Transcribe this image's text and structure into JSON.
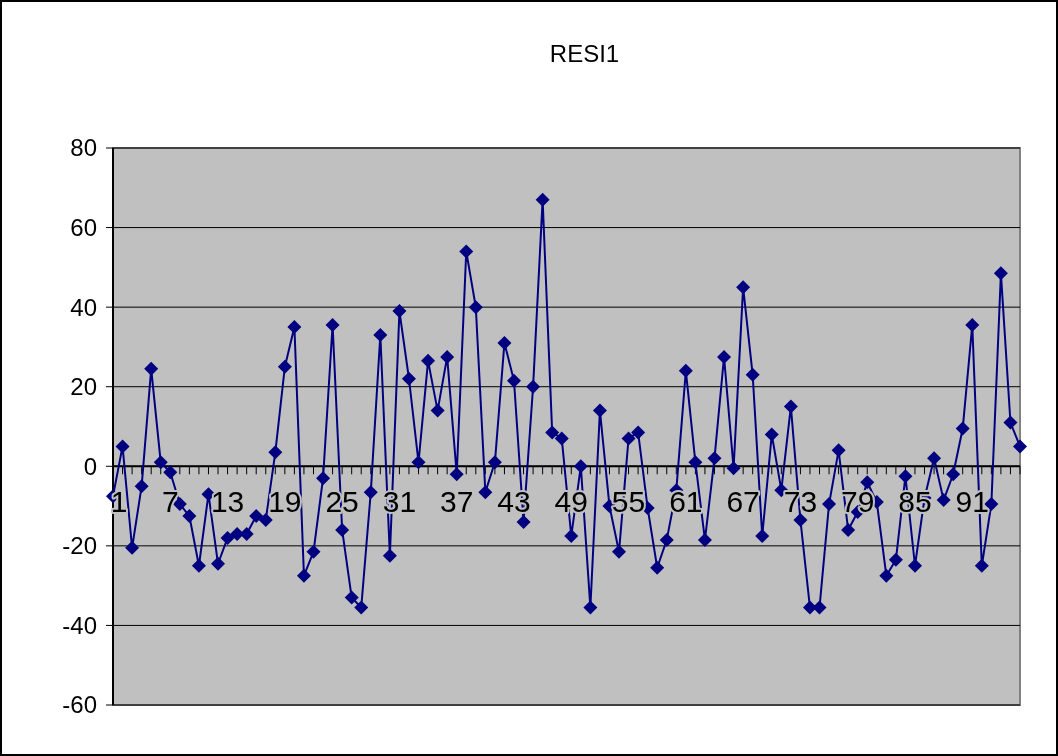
{
  "chart_data": {
    "type": "line",
    "title": "RESI1",
    "categories": [
      "1",
      null,
      null,
      null,
      null,
      null,
      "7",
      null,
      null,
      null,
      null,
      null,
      "13",
      null,
      null,
      null,
      null,
      null,
      "19",
      null,
      null,
      null,
      null,
      null,
      "25",
      null,
      null,
      null,
      null,
      null,
      "31",
      null,
      null,
      null,
      null,
      null,
      "37",
      null,
      null,
      null,
      null,
      null,
      "43",
      null,
      null,
      null,
      null,
      null,
      "49",
      null,
      null,
      null,
      null,
      null,
      "55",
      null,
      null,
      null,
      null,
      null,
      "61",
      null,
      null,
      null,
      null,
      null,
      "67",
      null,
      null,
      null,
      null,
      null,
      "73",
      null,
      null,
      null,
      null,
      null,
      "79",
      null,
      null,
      null,
      null,
      null,
      "85",
      null,
      null,
      null,
      null,
      null,
      "91",
      null,
      null,
      null,
      null,
      null
    ],
    "series": [
      {
        "color": "#000080",
        "values": [
          -7.5,
          5,
          -20.5,
          -5,
          24.5,
          1,
          -1.5,
          -9.5,
          -12.5,
          -25,
          -7,
          -24.5,
          -18,
          -17,
          -17,
          -12.5,
          -13.5,
          3.5,
          25,
          35,
          -27.5,
          -21.5,
          -3,
          35.5,
          -16,
          -33,
          -35.5,
          -6.5,
          33,
          -22.5,
          39,
          22,
          1,
          26.5,
          14,
          27.5,
          -2,
          54,
          40,
          -6.5,
          1,
          31,
          21.5,
          -14,
          20,
          67,
          8.5,
          7,
          -17.5,
          0,
          -35.5,
          14,
          -10,
          -21.5,
          7,
          8.5,
          -10.5,
          -25.5,
          -18.5,
          -6,
          24,
          1,
          -18.5,
          2,
          27.5,
          -0.5,
          45,
          23,
          -17.5,
          8,
          -6,
          15,
          -13.5,
          -35.5,
          -35.5,
          -9.5,
          4,
          -16,
          -11.5,
          -4,
          -9,
          -27.5,
          -23.5,
          -2.5,
          -25,
          -8,
          2,
          -8.5,
          -2,
          9.5,
          35.5,
          -25,
          -9.5,
          48.5,
          11,
          5
        ]
      }
    ],
    "ylim": [
      -60,
      80
    ],
    "yticks": [
      -60,
      -40,
      -20,
      0,
      20,
      40,
      60,
      80
    ],
    "grid": "y",
    "marker": "diamond",
    "line_style": "solid"
  }
}
